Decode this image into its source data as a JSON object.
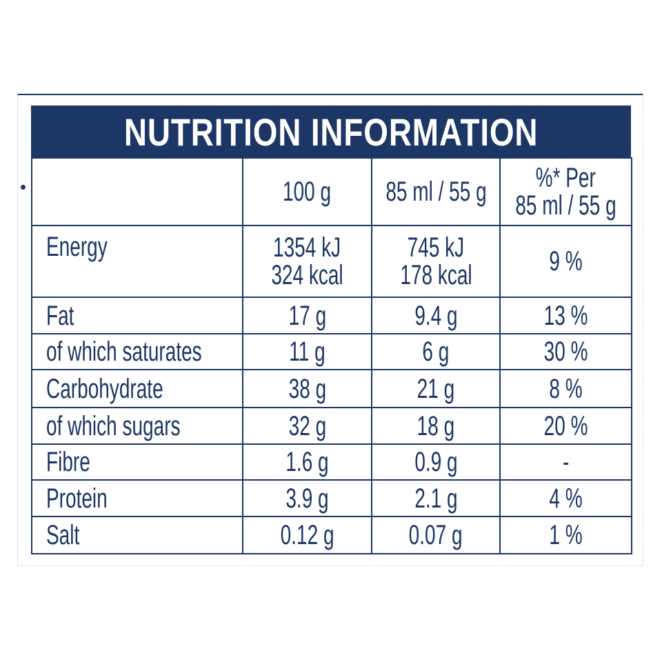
{
  "header": {
    "title": "NUTRITION INFORMATION"
  },
  "table": {
    "columns": [
      [
        "100 g"
      ],
      [
        "85 ml / 55 g"
      ],
      [
        "%* Per",
        "85 ml / 55 g"
      ]
    ],
    "rows": [
      [
        "Energy",
        [
          "1354 kJ",
          "324 kcal"
        ],
        [
          "745 kJ",
          "178 kcal"
        ],
        "9 %"
      ],
      [
        "Fat",
        "17 g",
        "9.4 g",
        "13 %"
      ],
      [
        "of which saturates",
        "11 g",
        "6 g",
        "30 %"
      ],
      [
        "Carbohydrate",
        "38 g",
        "21 g",
        "8 %"
      ],
      [
        "of which sugars",
        "32 g",
        "18 g",
        "20 %"
      ],
      [
        "Fibre",
        "1.6 g",
        "0.9 g",
        "-"
      ],
      [
        "Protein",
        "3.9 g",
        "2.1 g",
        "4 %"
      ],
      [
        "Salt",
        "0.12 g",
        "0.07 g",
        "1 %"
      ]
    ]
  }
}
